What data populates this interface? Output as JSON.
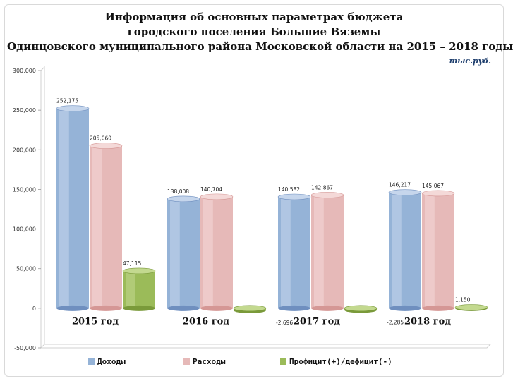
{
  "title": {
    "line1": "Информация об основных параметрах бюджета",
    "line2": "городского поселения Большие Вяземы",
    "line3": "Одинцовского муниципального района Московской области на 2015 – 2018 годы"
  },
  "unit_label": "тыс.руб.",
  "colors": {
    "income": "#95b3d7",
    "expense": "#e6b9b8",
    "balance": "#9bbb59"
  },
  "chart_data": {
    "type": "bar",
    "categories": [
      "2015 год",
      "2016 год",
      "2017 год",
      "2018 год"
    ],
    "series": [
      {
        "name": "Доходы",
        "values": [
          252175,
          138008,
          140582,
          146217
        ],
        "labels": [
          "252,175",
          "138,008",
          "140,582",
          "146,217"
        ]
      },
      {
        "name": "Расходы",
        "values": [
          205060,
          140704,
          142867,
          145067
        ],
        "labels": [
          "205,060",
          "140,704",
          "142,867",
          "145,067"
        ]
      },
      {
        "name": "Профицит(+)/дефицит(-)",
        "values": [
          47115,
          -2696,
          -2285,
          1150
        ],
        "labels": [
          "47,115",
          "-2,696",
          "-2,285",
          "1,150"
        ]
      }
    ],
    "ylim": [
      -50000,
      300000
    ],
    "yticks": [
      -50000,
      0,
      50000,
      100000,
      150000,
      200000,
      250000,
      300000
    ],
    "ytick_labels": [
      "-50,000",
      "0",
      "50,000",
      "100,000",
      "150,000",
      "200,000",
      "250,000",
      "300,000"
    ],
    "grid": false,
    "legend_position": "bottom"
  }
}
